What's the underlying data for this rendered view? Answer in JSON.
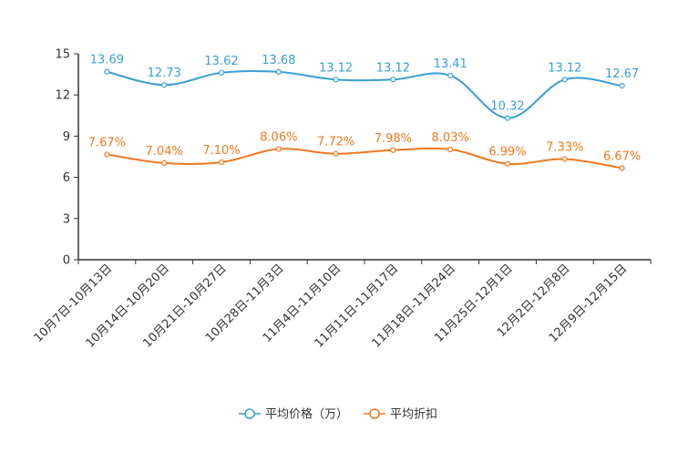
{
  "chart_data": {
    "type": "line",
    "title": "",
    "xlabel": "",
    "ylabel": "",
    "ylim": [
      0,
      15
    ],
    "yticks": [
      0,
      3,
      6,
      9,
      12,
      15
    ],
    "categories": [
      "10月7日-10月13日",
      "10月14日-10月20日",
      "10月21日-10月27日",
      "10月28日-11月3日",
      "11月4日-11月10日",
      "11月11日-11月17日",
      "11月18日-11月24日",
      "11月25日-12月1日",
      "12月2日-12月8日",
      "12月9日-12月15日"
    ],
    "series": [
      {
        "name": "平均价格（万）",
        "color": "#3a9fd5",
        "values": [
          13.69,
          12.73,
          13.62,
          13.68,
          13.12,
          13.12,
          13.41,
          10.32,
          13.12,
          12.67
        ],
        "labels": [
          "13.69",
          "12.73",
          "13.62",
          "13.68",
          "13.12",
          "13.12",
          "13.41",
          "10.32",
          "13.12",
          "12.67"
        ]
      },
      {
        "name": "平均折扣",
        "color": "#f0781e",
        "values": [
          7.67,
          7.04,
          7.1,
          8.06,
          7.72,
          7.98,
          8.03,
          6.99,
          7.33,
          6.67
        ],
        "labels": [
          "7.67%",
          "7.04%",
          "7.10%",
          "8.06%",
          "7.72%",
          "7.98%",
          "8.03%",
          "6.99%",
          "7.33%",
          "6.67%"
        ]
      }
    ],
    "legend_position": "bottom-center",
    "grid": false
  }
}
